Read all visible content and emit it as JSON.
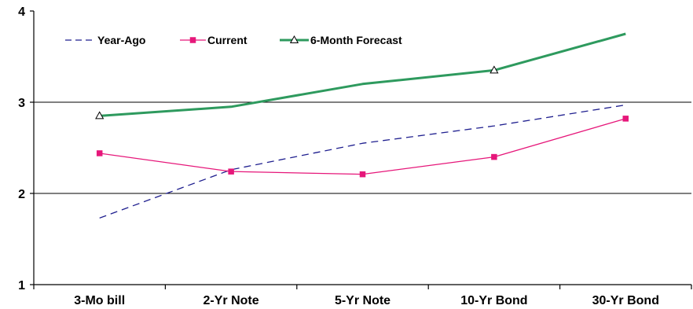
{
  "chart_data": {
    "type": "line",
    "categories": [
      "3-Mo bill",
      "2-Yr Note",
      "5-Yr Note",
      "10-Yr Bond",
      "30-Yr Bond"
    ],
    "series": [
      {
        "name": "Year-Ago",
        "values": [
          1.73,
          2.26,
          2.55,
          2.74,
          2.97
        ],
        "color": "#1f1f8f",
        "style": "dashed",
        "marker": "none"
      },
      {
        "name": "Current",
        "values": [
          2.44,
          2.24,
          2.21,
          2.4,
          2.82
        ],
        "color": "#e6177a",
        "style": "solid",
        "marker": "square"
      },
      {
        "name": "6-Month Forecast",
        "values": [
          2.85,
          2.95,
          3.2,
          3.35,
          3.75
        ],
        "color": "#2e9a5e",
        "style": "solid",
        "marker": "triangle-open"
      }
    ],
    "ylim": [
      1,
      4
    ],
    "yticks": [
      1,
      2,
      3,
      4
    ],
    "gridlines": [
      2,
      3
    ],
    "legend_position": "top-left",
    "title": "",
    "xlabel": "",
    "ylabel": ""
  }
}
